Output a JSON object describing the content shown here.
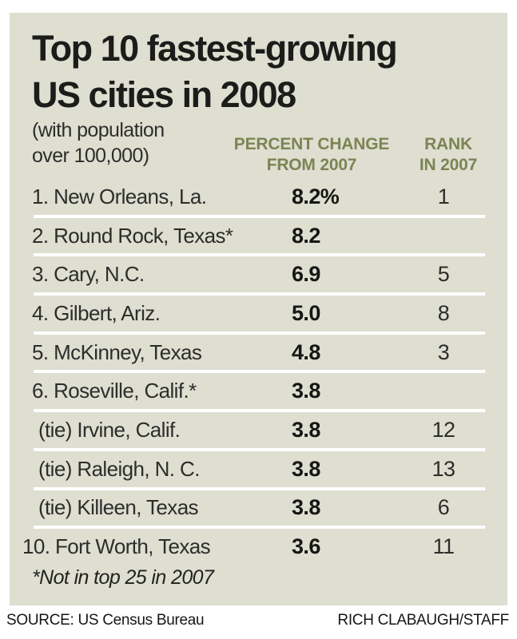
{
  "title": {
    "line1": "Top 10 fastest-growing",
    "line2": "US cities in 2008"
  },
  "subtitle": {
    "line1": "(with population",
    "line2": "over 100,000)"
  },
  "columns": {
    "percent": {
      "line1": "PERCENT CHANGE",
      "line2": "FROM 2007"
    },
    "rank": {
      "line1": "RANK",
      "line2": "IN 2007"
    }
  },
  "rows": [
    {
      "city": "1. New Orleans, La.",
      "percent": "8.2%",
      "rank": "1"
    },
    {
      "city": "2. Round Rock, Texas*",
      "percent": "8.2",
      "rank": ""
    },
    {
      "city": "3. Cary, N.C.",
      "percent": "6.9",
      "rank": "5"
    },
    {
      "city": "4. Gilbert, Ariz.",
      "percent": "5.0",
      "rank": "8"
    },
    {
      "city": "5. McKinney, Texas",
      "percent": "4.8",
      "rank": "3"
    },
    {
      "city": "6. Roseville, Calif.*",
      "percent": "3.8",
      "rank": ""
    },
    {
      "city": "(tie) Irvine, Calif.",
      "percent": "3.8",
      "rank": "12"
    },
    {
      "city": "(tie) Raleigh, N. C.",
      "percent": "3.8",
      "rank": "13"
    },
    {
      "city": "(tie) Killeen, Texas",
      "percent": "3.8",
      "rank": "6"
    },
    {
      "city": "10. Fort Worth, Texas",
      "percent": "3.6",
      "rank": "11"
    }
  ],
  "footnote": "*Not in top 25 in 2007",
  "footer": {
    "source": "SOURCE: US Census Bureau",
    "credit": "RICH CLABAUGH/STAFF"
  },
  "colors": {
    "card_background": "#deded1",
    "column_header": "#7d8454",
    "title_text": "#1c1c1a",
    "body_text": "#2d2d2b",
    "separator": "#ffffff"
  },
  "chart_data": {
    "type": "table",
    "title": "Top 10 fastest-growing US cities in 2008",
    "subtitle": "(with population over 100,000)",
    "columns": [
      "City",
      "Percent change from 2007",
      "Rank in 2007"
    ],
    "rows": [
      [
        "1. New Orleans, La.",
        8.2,
        1
      ],
      [
        "2. Round Rock, Texas*",
        8.2,
        null
      ],
      [
        "3. Cary, N.C.",
        6.9,
        5
      ],
      [
        "4. Gilbert, Ariz.",
        5.0,
        8
      ],
      [
        "5. McKinney, Texas",
        4.8,
        3
      ],
      [
        "6. Roseville, Calif.*",
        3.8,
        null
      ],
      [
        "(tie) Irvine, Calif.",
        3.8,
        12
      ],
      [
        "(tie) Raleigh, N. C.",
        3.8,
        13
      ],
      [
        "(tie) Killeen, Texas",
        3.8,
        6
      ],
      [
        "10. Fort Worth, Texas",
        3.6,
        11
      ]
    ],
    "footnote": "*Not in top 25 in 2007",
    "source": "SOURCE: US Census Bureau",
    "credit": "RICH CLABAUGH/STAFF",
    "layout": {
      "separators": "white horizontal rules between rows",
      "value_columns_aligned": true
    }
  }
}
